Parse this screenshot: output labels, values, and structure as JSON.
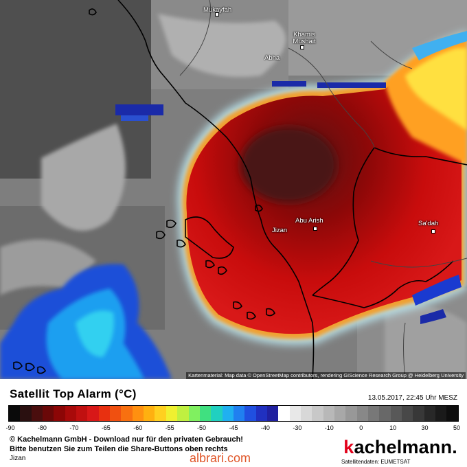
{
  "map": {
    "cities": [
      {
        "name": "Mukayfah"
      },
      {
        "name": "Khamis\nMushait"
      },
      {
        "name": "Abha"
      },
      {
        "name": "Abu Arish"
      },
      {
        "name": "Jizan"
      },
      {
        "name": "Sa'dah"
      }
    ],
    "attribution": "Kartenmaterial: Map data © OpenStreetMap contributors, rendering GIScience Research Group @ Heidelberg University"
  },
  "legend": {
    "title": "Satellit Top Alarm (°C)",
    "datetime": "13.05.2017, 22:45 Uhr MESZ",
    "ticks": [
      "-90",
      "-80",
      "-70",
      "-65",
      "-60",
      "-55",
      "-50",
      "-45",
      "-40",
      "-30",
      "-10",
      "0",
      "10",
      "30",
      "50"
    ],
    "colors": [
      "#0a0a0a",
      "#2a1010",
      "#4a0e0e",
      "#6a0808",
      "#8c0606",
      "#a80a0a",
      "#c01010",
      "#d81818",
      "#e83010",
      "#f05010",
      "#f87010",
      "#ff9010",
      "#ffb010",
      "#ffd020",
      "#f0f030",
      "#c0f040",
      "#80f060",
      "#40e080",
      "#20d0c0",
      "#20b0f0",
      "#2080f0",
      "#2050e0",
      "#2030c0",
      "#2020a0",
      "#ffffff",
      "#e8e8e8",
      "#d8d8d8",
      "#c8c8c8",
      "#b8b8b8",
      "#a8a8a8",
      "#989898",
      "#888888",
      "#787878",
      "#686868",
      "#585858",
      "#484848",
      "#383838",
      "#282828",
      "#1a1a1a",
      "#0e0e0e"
    ]
  },
  "footer": {
    "copyright": "© Kachelmann GmbH - Download nur für den privaten Gebrauch!",
    "share": "Bitte benutzen Sie zum Teilen die Share-Buttons oben rechts",
    "location": "Jizan",
    "watermark": "albrari.com",
    "brand_k": "k",
    "brand_rest": "achelmann.",
    "provider": "Satellitendaten: EUMETSAT"
  }
}
